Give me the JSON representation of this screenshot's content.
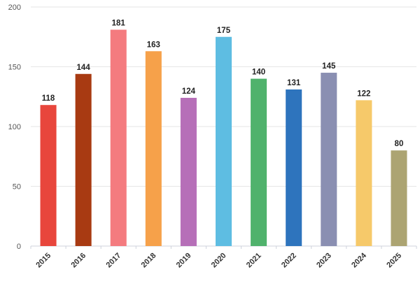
{
  "chart_data": {
    "type": "bar",
    "categories": [
      "2015",
      "2016",
      "2017",
      "2018",
      "2019",
      "2020",
      "2021",
      "2022",
      "2023",
      "2024",
      "2025"
    ],
    "values": [
      118,
      144,
      181,
      163,
      124,
      175,
      140,
      131,
      145,
      122,
      80
    ],
    "colors": [
      "#e8463c",
      "#a83a12",
      "#f47b7f",
      "#f6a14a",
      "#b66fb8",
      "#5ebde2",
      "#50b26c",
      "#2e74bd",
      "#8a8fb2",
      "#f6c96a",
      "#aca472"
    ],
    "ylim": [
      0,
      200
    ],
    "yticks": [
      0,
      50,
      100,
      150,
      200
    ],
    "grid": true,
    "data_labels": true,
    "x_tick_rotation": "45deg"
  }
}
